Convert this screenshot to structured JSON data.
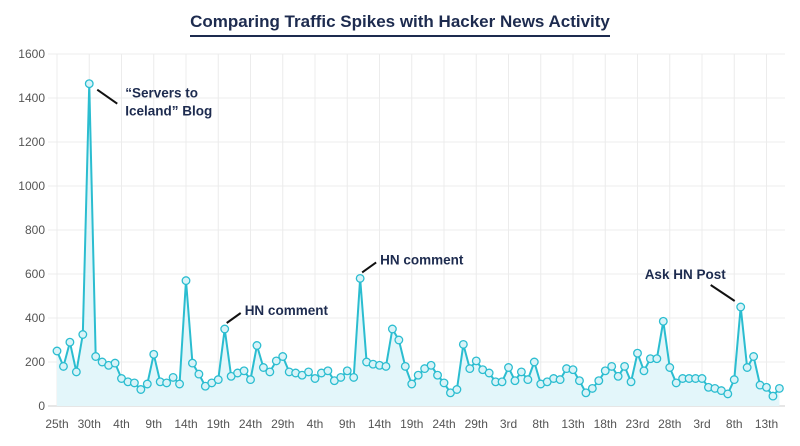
{
  "chart_data": {
    "type": "line",
    "title": "Comparing Traffic Spikes with Hacker News Activity",
    "xlabel": "",
    "ylabel": "",
    "ylim": [
      0,
      1600
    ],
    "yticks": [
      0,
      200,
      400,
      600,
      800,
      1000,
      1200,
      1400,
      1600
    ],
    "xtick_labels": [
      "25th",
      "30th",
      "4th",
      "9th",
      "14th",
      "19th",
      "24th",
      "29th",
      "4th",
      "9th",
      "14th",
      "19th",
      "24th",
      "29th",
      "3rd",
      "8th",
      "13th",
      "18th",
      "23rd",
      "28th",
      "3rd",
      "8th",
      "13th"
    ],
    "xtick_every_days": 5,
    "grid": true,
    "area_fill": true,
    "color": "#2bbdd0",
    "fill_color": "#e3f6fa",
    "values": [
      250,
      180,
      290,
      155,
      325,
      1465,
      225,
      200,
      185,
      195,
      125,
      110,
      105,
      75,
      100,
      235,
      110,
      105,
      130,
      100,
      570,
      195,
      145,
      90,
      105,
      120,
      350,
      135,
      150,
      160,
      120,
      275,
      175,
      155,
      205,
      225,
      155,
      150,
      140,
      155,
      125,
      150,
      160,
      115,
      130,
      160,
      130,
      580,
      200,
      190,
      185,
      180,
      350,
      300,
      180,
      100,
      140,
      170,
      185,
      140,
      105,
      60,
      75,
      280,
      170,
      205,
      165,
      150,
      110,
      110,
      175,
      115,
      155,
      120,
      200,
      100,
      110,
      125,
      120,
      170,
      165,
      115,
      60,
      80,
      115,
      160,
      180,
      135,
      180,
      110,
      240,
      160,
      215,
      215,
      385,
      175,
      105,
      125,
      125,
      125,
      125,
      85,
      80,
      70,
      55,
      120,
      450,
      175,
      225,
      95,
      85,
      45,
      80
    ],
    "annotations": [
      {
        "index": 5,
        "lines": [
          "“Servers to",
          "Iceland” Blog"
        ]
      },
      {
        "index": 26,
        "lines": [
          "HN comment"
        ]
      },
      {
        "index": 47,
        "lines": [
          "HN comment"
        ]
      },
      {
        "index": 106,
        "lines": [
          "Ask HN Post"
        ]
      }
    ]
  }
}
